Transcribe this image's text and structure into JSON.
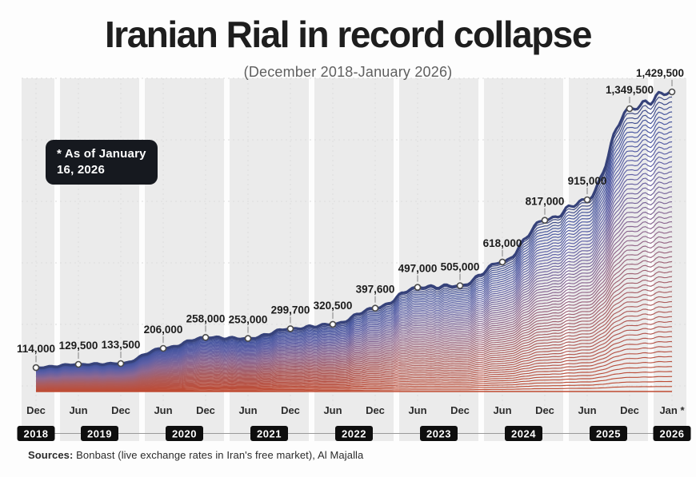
{
  "header": {
    "title": "Iranian Rial in record collapse",
    "subtitle": "(December 2018-January 2026)"
  },
  "annotation": {
    "line1": "* As of January",
    "line2": "16, 2026"
  },
  "footer": {
    "sources_label": "Sources:",
    "sources_text": " Bonbast (live exchange rates in Iran's free market), Al Majalla"
  },
  "axis": {
    "months": [
      "Dec",
      "Jun",
      "Dec",
      "Jun",
      "Dec",
      "Jun",
      "Dec",
      "Jun",
      "Dec",
      "Jun",
      "Dec",
      "Jun",
      "Dec",
      "Jun",
      "Dec",
      "Jan *"
    ],
    "years": [
      "2018",
      "2019",
      "2020",
      "2021",
      "2022",
      "2023",
      "2024",
      "2025",
      "2026"
    ]
  },
  "chart_data": {
    "type": "area",
    "title": "Iranian Rial in record collapse",
    "subtitle": "(December 2018-January 2026)",
    "x": [
      "Dec 2018",
      "Jun 2019",
      "Dec 2019",
      "Jun 2020",
      "Dec 2020",
      "Jun 2021",
      "Dec 2021",
      "Jun 2022",
      "Dec 2022",
      "Jun 2023",
      "Dec 2023",
      "Jun 2024",
      "Dec 2024",
      "Jun 2025",
      "Dec 2025",
      "Jan 2026"
    ],
    "values": [
      114000,
      129500,
      133500,
      206000,
      258000,
      253000,
      299700,
      320500,
      397600,
      497000,
      505000,
      618000,
      817000,
      915000,
      1349500,
      1429500
    ],
    "point_labels": [
      "114,000",
      "129,500",
      "133,500",
      "206,000",
      "258,000",
      "253,000",
      "299,700",
      "320,500",
      "397,600",
      "497,000",
      "505,000",
      "618,000",
      "817,000",
      "915,000",
      "1,349,500",
      "1,429,500"
    ],
    "ylim": [
      0,
      1480000
    ],
    "legend": "none",
    "grid": "dashed",
    "style": "ridgeline gradient, blue at top fading to red at baseline"
  },
  "colors": {
    "line_top": "#36427a",
    "line_blue": "#4756a0",
    "line_mid": "#8f688f",
    "line_red": "#bf4a31",
    "badge_bg": "#0e0e0e",
    "annotation_bg": "#16191f",
    "band": "#ebebeb",
    "gridline": "#dcdcdc",
    "text_dark": "#1c1c1c",
    "text_gray": "#5f5f5f"
  }
}
